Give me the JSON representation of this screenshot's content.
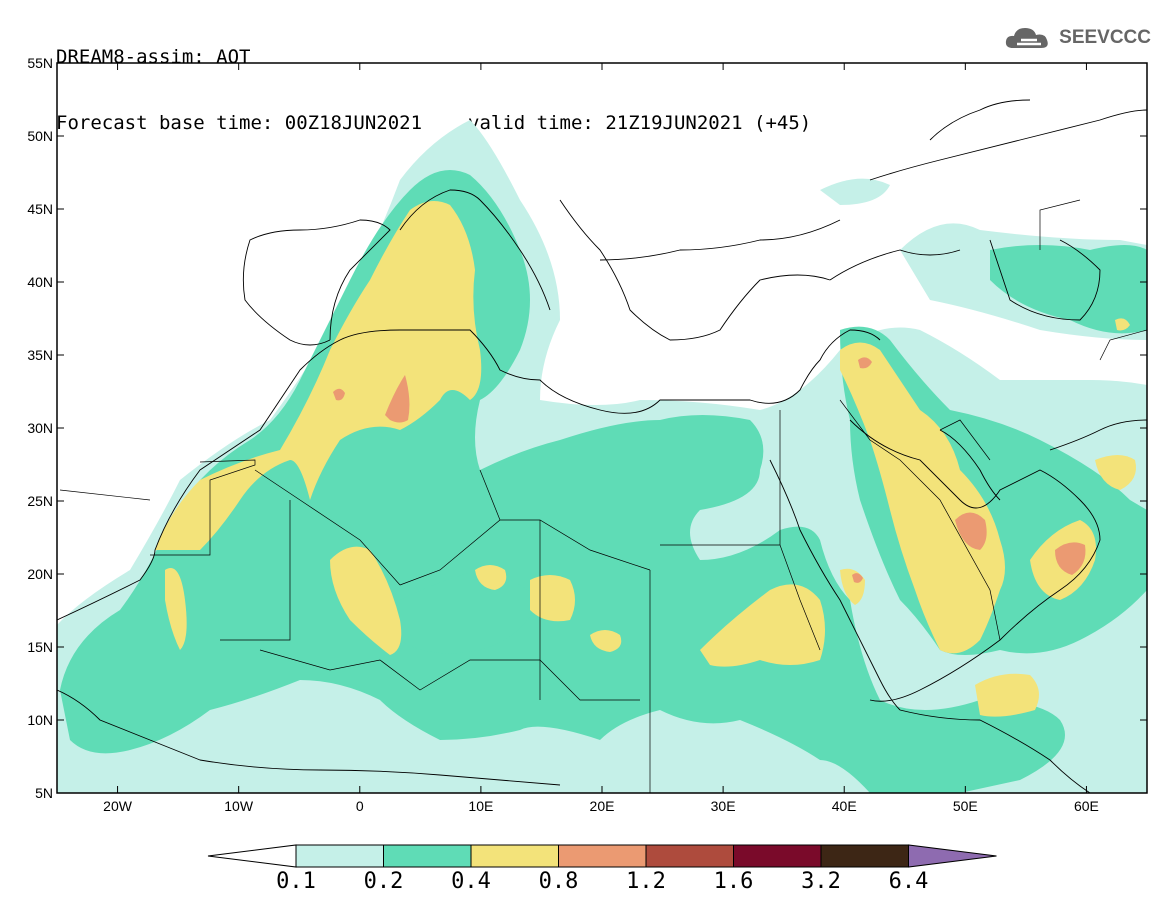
{
  "header": {
    "title": "DREAM8-assim: AOT",
    "base_time_label": "Forecast base time: 00Z18JUN2021",
    "valid_time_label": "valid time: 21Z19JUN2021 (+45)"
  },
  "logo": {
    "text": "SEEVCCC",
    "icon": "cloud-icon"
  },
  "map": {
    "lat_ticks": [
      "55N",
      "50N",
      "45N",
      "40N",
      "35N",
      "30N",
      "25N",
      "20N",
      "15N",
      "10N",
      "5N"
    ],
    "lon_ticks": [
      "20W",
      "10W",
      "0",
      "10E",
      "20E",
      "30E",
      "40E",
      "50E",
      "60E"
    ],
    "extent": {
      "lon": [
        -25,
        65
      ],
      "lat": [
        5,
        55
      ]
    },
    "colors": {
      "c01": "#c5f0e8",
      "c02": "#5fdcb6",
      "c04": "#f3e37a",
      "c08": "#eb9a72",
      "c12": "#c86a58",
      "frame": "#000000"
    }
  },
  "colorbar": {
    "labels": [
      "0.1",
      "0.2",
      "0.4",
      "0.8",
      "1.2",
      "1.6",
      "3.2",
      "6.4"
    ],
    "colors": [
      "#ffffff",
      "#c5f0e8",
      "#5fdcb6",
      "#f3e37a",
      "#eb9a72",
      "#ae4b3d",
      "#7a0a2a",
      "#3d2615",
      "#8e6bb0"
    ]
  }
}
